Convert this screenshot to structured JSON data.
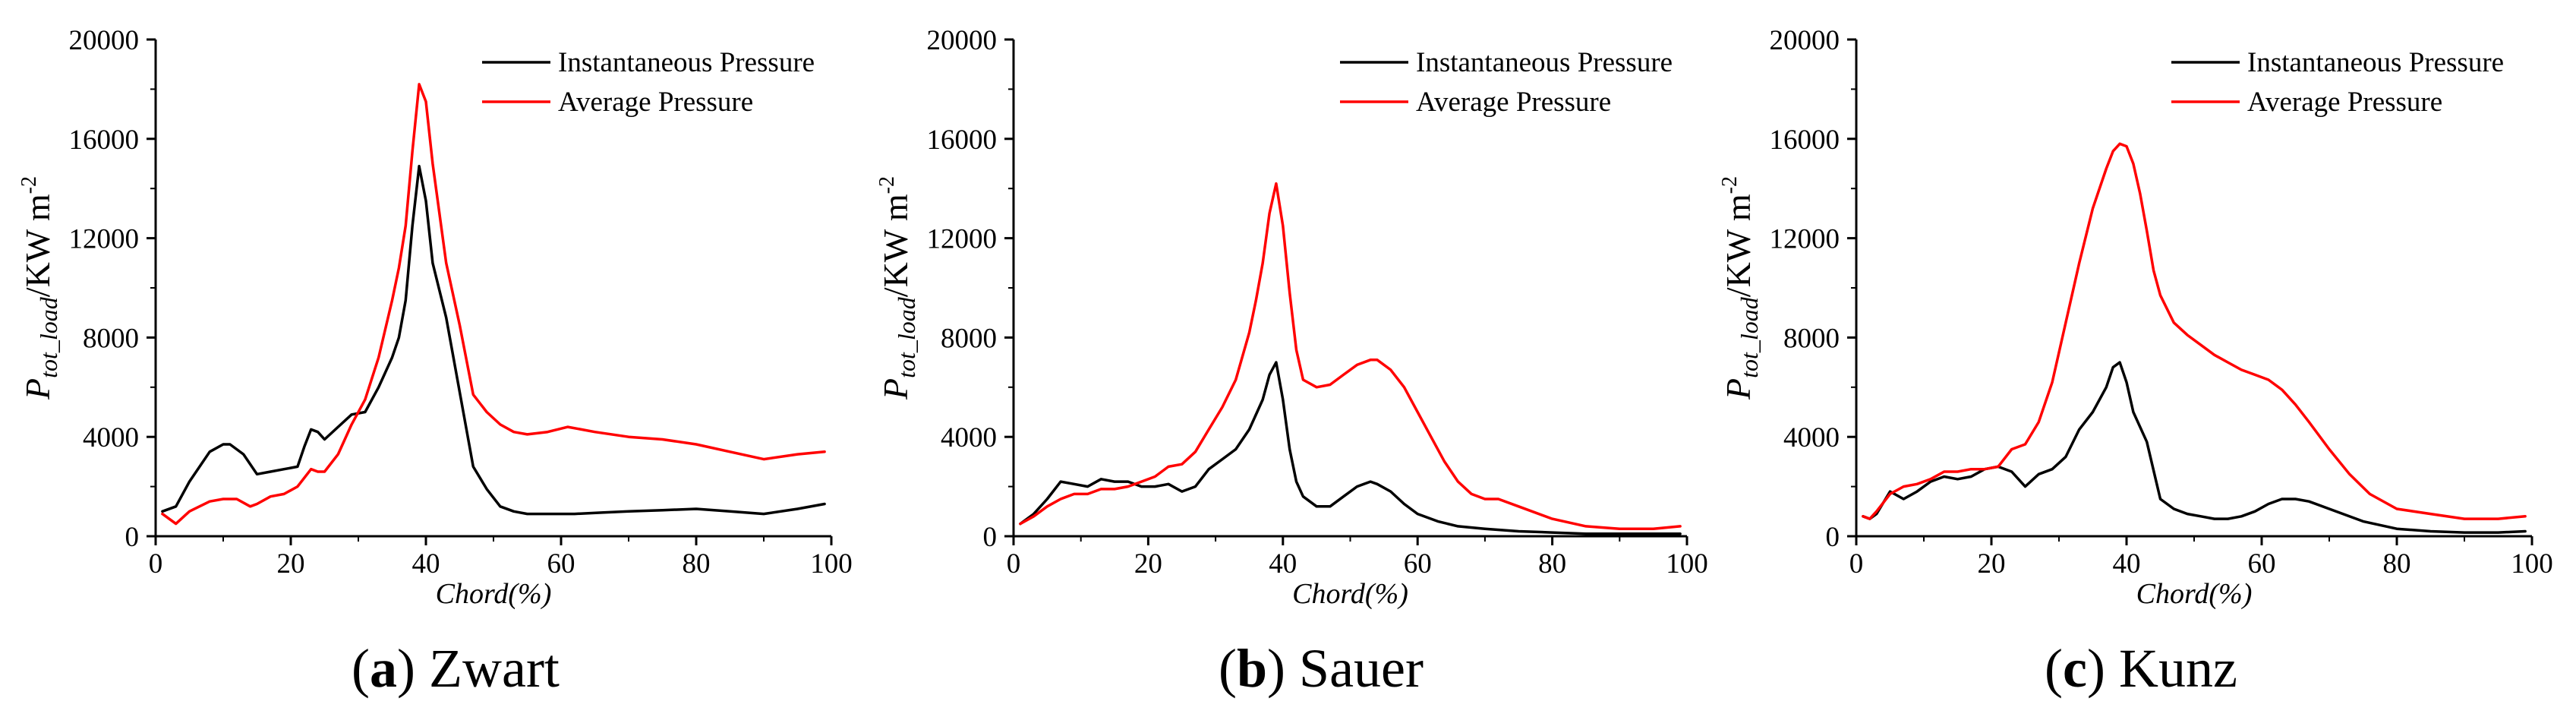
{
  "figure": {
    "legend": {
      "instantaneous": "Instantaneous Pressure",
      "average": "Average Pressure"
    },
    "colors": {
      "instantaneous": "#000000",
      "average": "#ff0000",
      "axis": "#000000"
    }
  },
  "chart_data": [
    {
      "type": "line",
      "panel_letter": "a",
      "caption": "Zwart",
      "xlabel": "Chord(%)",
      "ylabel": "P",
      "ylabel_sub": "tot_load",
      "ylabel_unit": "/KW m",
      "ylabel_sup": "-2",
      "xlim": [
        0,
        100
      ],
      "ylim": [
        0,
        20000
      ],
      "xticks": [
        0,
        20,
        40,
        60,
        80,
        100
      ],
      "yticks": [
        0,
        4000,
        8000,
        12000,
        16000,
        20000
      ],
      "legend_position": "top-right",
      "series": [
        {
          "name": "Instantaneous Pressure",
          "color": "#000000",
          "x": [
            1,
            3,
            5,
            8,
            10,
            11,
            13,
            15,
            17,
            19,
            21,
            22,
            23,
            24,
            25,
            27,
            29,
            31,
            33,
            35,
            36,
            37,
            38,
            39,
            40,
            41,
            43,
            45,
            47,
            49,
            51,
            53,
            55,
            58,
            62,
            66,
            70,
            75,
            80,
            85,
            90,
            95,
            99
          ],
          "y": [
            1000,
            1200,
            2200,
            3400,
            3700,
            3700,
            3300,
            2500,
            2600,
            2700,
            2800,
            3600,
            4300,
            4200,
            3900,
            4400,
            4900,
            5000,
            6000,
            7200,
            8000,
            9500,
            12500,
            14900,
            13500,
            11000,
            8800,
            5800,
            2800,
            1900,
            1200,
            1000,
            900,
            900,
            900,
            950,
            1000,
            1050,
            1100,
            1000,
            900,
            1100,
            1300
          ]
        },
        {
          "name": "Average Pressure",
          "color": "#ff0000",
          "x": [
            1,
            3,
            5,
            8,
            10,
            12,
            14,
            15,
            17,
            19,
            21,
            23,
            24,
            25,
            27,
            29,
            31,
            33,
            35,
            36,
            37,
            38,
            39,
            40,
            41,
            43,
            45,
            47,
            49,
            51,
            53,
            55,
            58,
            61,
            65,
            70,
            75,
            80,
            85,
            90,
            95,
            99
          ],
          "y": [
            900,
            500,
            1000,
            1400,
            1500,
            1500,
            1200,
            1300,
            1600,
            1700,
            2000,
            2700,
            2600,
            2600,
            3300,
            4500,
            5500,
            7200,
            9500,
            10800,
            12500,
            15500,
            18200,
            17500,
            15000,
            11000,
            8500,
            5700,
            5000,
            4500,
            4200,
            4100,
            4200,
            4400,
            4200,
            4000,
            3900,
            3700,
            3400,
            3100,
            3300,
            3400
          ]
        }
      ]
    },
    {
      "type": "line",
      "panel_letter": "b",
      "caption": "Sauer",
      "xlabel": "Chord(%)",
      "ylabel": "P",
      "ylabel_sub": "tot_load",
      "ylabel_unit": "/KW m",
      "ylabel_sup": "-2",
      "xlim": [
        0,
        100
      ],
      "ylim": [
        0,
        20000
      ],
      "xticks": [
        0,
        20,
        40,
        60,
        80,
        100
      ],
      "yticks": [
        0,
        4000,
        8000,
        12000,
        16000,
        20000
      ],
      "legend_position": "top-right",
      "series": [
        {
          "name": "Instantaneous Pressure",
          "color": "#000000",
          "x": [
            1,
            3,
            5,
            7,
            9,
            11,
            13,
            15,
            17,
            19,
            21,
            23,
            25,
            27,
            29,
            31,
            33,
            35,
            37,
            38,
            39,
            40,
            41,
            42,
            43,
            45,
            47,
            49,
            51,
            53,
            54,
            56,
            58,
            60,
            63,
            66,
            70,
            75,
            80,
            85,
            90,
            95,
            99
          ],
          "y": [
            500,
            900,
            1500,
            2200,
            2100,
            2000,
            2300,
            2200,
            2200,
            2000,
            2000,
            2100,
            1800,
            2000,
            2700,
            3100,
            3500,
            4300,
            5500,
            6500,
            7000,
            5500,
            3500,
            2200,
            1600,
            1200,
            1200,
            1600,
            2000,
            2200,
            2100,
            1800,
            1300,
            900,
            600,
            400,
            300,
            200,
            150,
            100,
            100,
            100,
            100
          ]
        },
        {
          "name": "Average Pressure",
          "color": "#ff0000",
          "x": [
            1,
            3,
            5,
            7,
            9,
            11,
            13,
            15,
            17,
            19,
            21,
            23,
            25,
            27,
            29,
            31,
            33,
            35,
            36,
            37,
            38,
            39,
            40,
            41,
            42,
            43,
            45,
            47,
            49,
            51,
            53,
            54,
            56,
            58,
            60,
            62,
            64,
            66,
            68,
            70,
            72,
            75,
            80,
            85,
            90,
            95,
            99
          ],
          "y": [
            500,
            800,
            1200,
            1500,
            1700,
            1700,
            1900,
            1900,
            2000,
            2200,
            2400,
            2800,
            2900,
            3400,
            4300,
            5200,
            6300,
            8200,
            9500,
            11000,
            13000,
            14200,
            12500,
            9800,
            7500,
            6300,
            6000,
            6100,
            6500,
            6900,
            7100,
            7100,
            6700,
            6000,
            5000,
            4000,
            3000,
            2200,
            1700,
            1500,
            1500,
            1200,
            700,
            400,
            300,
            300,
            400
          ]
        }
      ]
    },
    {
      "type": "line",
      "panel_letter": "c",
      "caption": "Kunz",
      "xlabel": "Chord(%)",
      "ylabel": "P",
      "ylabel_sub": "tot_load",
      "ylabel_unit": "/KW m",
      "ylabel_sup": "-2",
      "xlim": [
        0,
        100
      ],
      "ylim": [
        0,
        20000
      ],
      "xticks": [
        0,
        20,
        40,
        60,
        80,
        100
      ],
      "yticks": [
        0,
        4000,
        8000,
        12000,
        16000,
        20000
      ],
      "legend_position": "top-right",
      "series": [
        {
          "name": "Instantaneous Pressure",
          "color": "#000000",
          "x": [
            1,
            2,
            3,
            5,
            7,
            9,
            11,
            13,
            15,
            17,
            19,
            21,
            23,
            25,
            27,
            29,
            31,
            33,
            35,
            37,
            38,
            39,
            40,
            41,
            43,
            45,
            47,
            49,
            51,
            53,
            55,
            57,
            59,
            61,
            63,
            65,
            67,
            70,
            75,
            80,
            85,
            90,
            95,
            99
          ],
          "y": [
            800,
            700,
            900,
            1800,
            1500,
            1800,
            2200,
            2400,
            2300,
            2400,
            2700,
            2800,
            2600,
            2000,
            2500,
            2700,
            3200,
            4300,
            5000,
            6000,
            6800,
            7000,
            6200,
            5000,
            3800,
            1500,
            1100,
            900,
            800,
            700,
            700,
            800,
            1000,
            1300,
            1500,
            1500,
            1400,
            1100,
            600,
            300,
            200,
            150,
            150,
            200
          ]
        },
        {
          "name": "Average Pressure",
          "color": "#ff0000",
          "x": [
            1,
            2,
            3,
            5,
            7,
            9,
            11,
            13,
            15,
            17,
            19,
            21,
            23,
            25,
            27,
            29,
            31,
            33,
            35,
            37,
            38,
            39,
            40,
            41,
            42,
            43,
            44,
            45,
            47,
            49,
            51,
            53,
            55,
            57,
            59,
            61,
            63,
            65,
            67,
            70,
            73,
            76,
            80,
            85,
            90,
            95,
            99
          ],
          "y": [
            800,
            700,
            1000,
            1700,
            2000,
            2100,
            2300,
            2600,
            2600,
            2700,
            2700,
            2800,
            3500,
            3700,
            4600,
            6200,
            8600,
            11000,
            13200,
            14800,
            15500,
            15800,
            15700,
            15000,
            13800,
            12300,
            10700,
            9700,
            8600,
            8100,
            7700,
            7300,
            7000,
            6700,
            6500,
            6300,
            5900,
            5300,
            4600,
            3500,
            2500,
            1700,
            1100,
            900,
            700,
            700,
            800
          ]
        }
      ]
    }
  ]
}
